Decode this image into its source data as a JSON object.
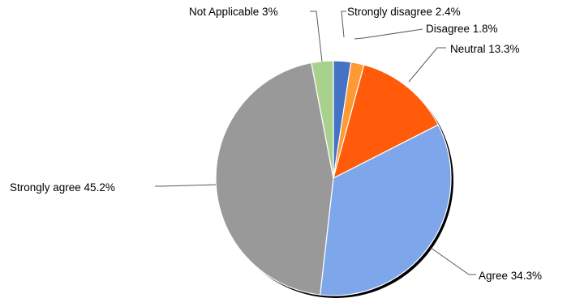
{
  "chart_data": {
    "type": "pie",
    "title": "",
    "categories": [
      "Strongly disagree",
      "Disagree",
      "Neutral",
      "Agree",
      "Strongly agree",
      "Not Applicable"
    ],
    "values": [
      2.4,
      1.8,
      13.3,
      34.3,
      45.2,
      3.0
    ],
    "labels": [
      "Strongly disagree 2.4%",
      "Disagree 1.8%",
      "Neutral 13.3%",
      "Agree 34.3%",
      "Strongly agree 45.2%",
      "Not Applicable 3%"
    ],
    "colors": [
      "#4472C4",
      "#FF9933",
      "#FF5B0A",
      "#7EA6EA",
      "#999999",
      "#A9D18E"
    ],
    "start": "12 o'clock",
    "direction": "clockwise",
    "legend": "none (data labels with leader lines)"
  }
}
